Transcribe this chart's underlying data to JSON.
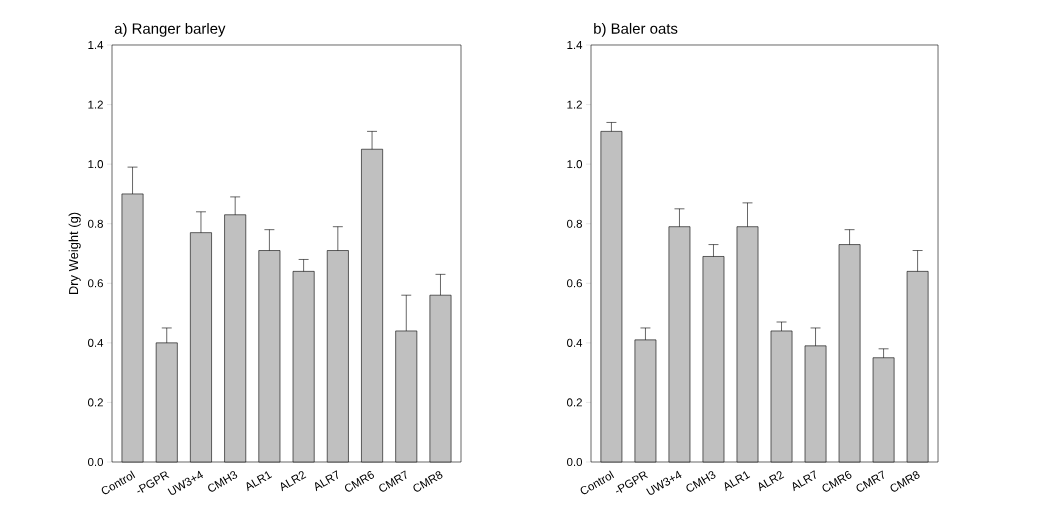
{
  "chart_data": [
    {
      "type": "bar",
      "title": "a) Ranger barley",
      "ylabel": "Dry Weight (g)",
      "categories": [
        "Control",
        "-PGPR",
        "UW3+4",
        "CMH3",
        "ALR1",
        "ALR2",
        "ALR7",
        "CMR6",
        "CMR7",
        "CMR8"
      ],
      "values": [
        0.9,
        0.4,
        0.77,
        0.83,
        0.71,
        0.64,
        0.71,
        1.05,
        0.44,
        0.56
      ],
      "errors": [
        0.09,
        0.05,
        0.07,
        0.06,
        0.07,
        0.04,
        0.08,
        0.06,
        0.12,
        0.07
      ],
      "color": "#c0c0c0",
      "ylim": [
        0,
        1.4
      ],
      "yticks": [
        {
          "value": 0,
          "label": "0.0"
        },
        {
          "value": 0.2,
          "label": "0.2"
        },
        {
          "value": 0.4,
          "label": "0.4"
        },
        {
          "value": 0.6,
          "label": "0.6"
        },
        {
          "value": 0.8,
          "label": "0.8"
        },
        {
          "value": 1.0,
          "label": "1.0"
        },
        {
          "value": 1.2,
          "label": "1.2"
        },
        {
          "value": 1.4,
          "label": "1.4"
        }
      ]
    },
    {
      "type": "bar",
      "title": "b) Baler oats",
      "categories": [
        "Control",
        "-PGPR",
        "UW3+4",
        "CMH3",
        "ALR1",
        "ALR2",
        "ALR7",
        "CMR6",
        "CMR7",
        "CMR8"
      ],
      "values": [
        1.11,
        0.41,
        0.79,
        0.69,
        0.79,
        0.44,
        0.39,
        0.73,
        0.35,
        0.64
      ],
      "errors": [
        0.03,
        0.04,
        0.06,
        0.04,
        0.08,
        0.03,
        0.06,
        0.05,
        0.03,
        0.07
      ],
      "color": "#c0c0c0",
      "ylim": [
        0,
        1.4
      ],
      "yticks": [
        {
          "value": 0,
          "label": "0.0"
        },
        {
          "value": 0.2,
          "label": "0.2"
        },
        {
          "value": 0.4,
          "label": "0.4"
        },
        {
          "value": 0.6,
          "label": "0.6"
        },
        {
          "value": 0.8,
          "label": "0.8"
        },
        {
          "value": 1.0,
          "label": "1.0"
        },
        {
          "value": 1.2,
          "label": "1.2"
        },
        {
          "value": 1.4,
          "label": "1.4"
        }
      ]
    }
  ]
}
